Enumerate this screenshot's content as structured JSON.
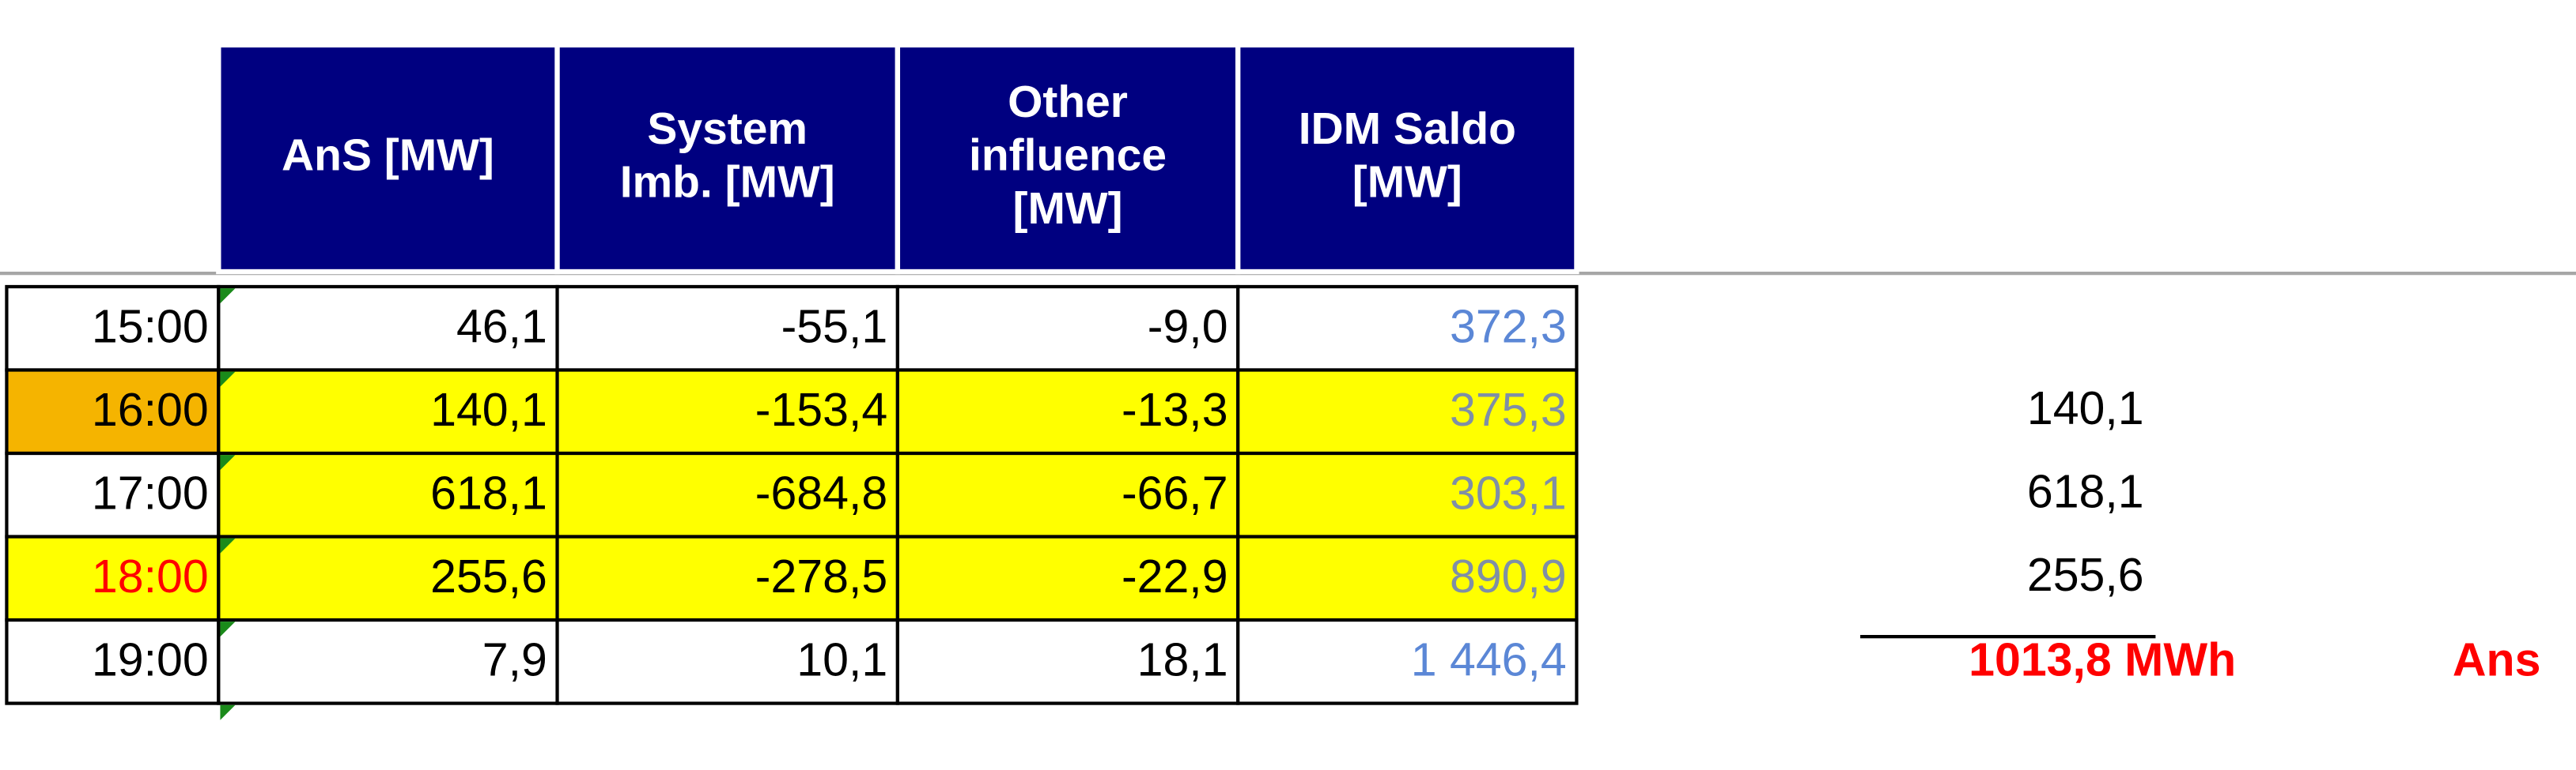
{
  "table": {
    "columns": [
      [
        "AnS  [MW]"
      ],
      [
        "System",
        "Imb. [MW]"
      ],
      [
        "Other",
        "influence",
        "[MW]"
      ],
      [
        "IDM Saldo",
        "[MW]"
      ]
    ],
    "rows": [
      [
        "15:00",
        "46,1",
        "-55,1",
        "-9,0",
        "372,3"
      ],
      [
        "16:00",
        "140,1",
        "-153,4",
        "-13,3",
        "375,3"
      ],
      [
        "17:00",
        "618,1",
        "-684,8",
        "-66,7",
        "303,1"
      ],
      [
        "18:00",
        "255,6",
        "-278,5",
        "-22,9",
        "890,9"
      ],
      [
        "19:00",
        "7,9",
        "10,1",
        "18,1",
        "1 446,4"
      ]
    ]
  },
  "side": {
    "values": [
      "140,1",
      "618,1",
      "255,6"
    ],
    "total": "1013,8 MWh",
    "label": "Ans"
  }
}
